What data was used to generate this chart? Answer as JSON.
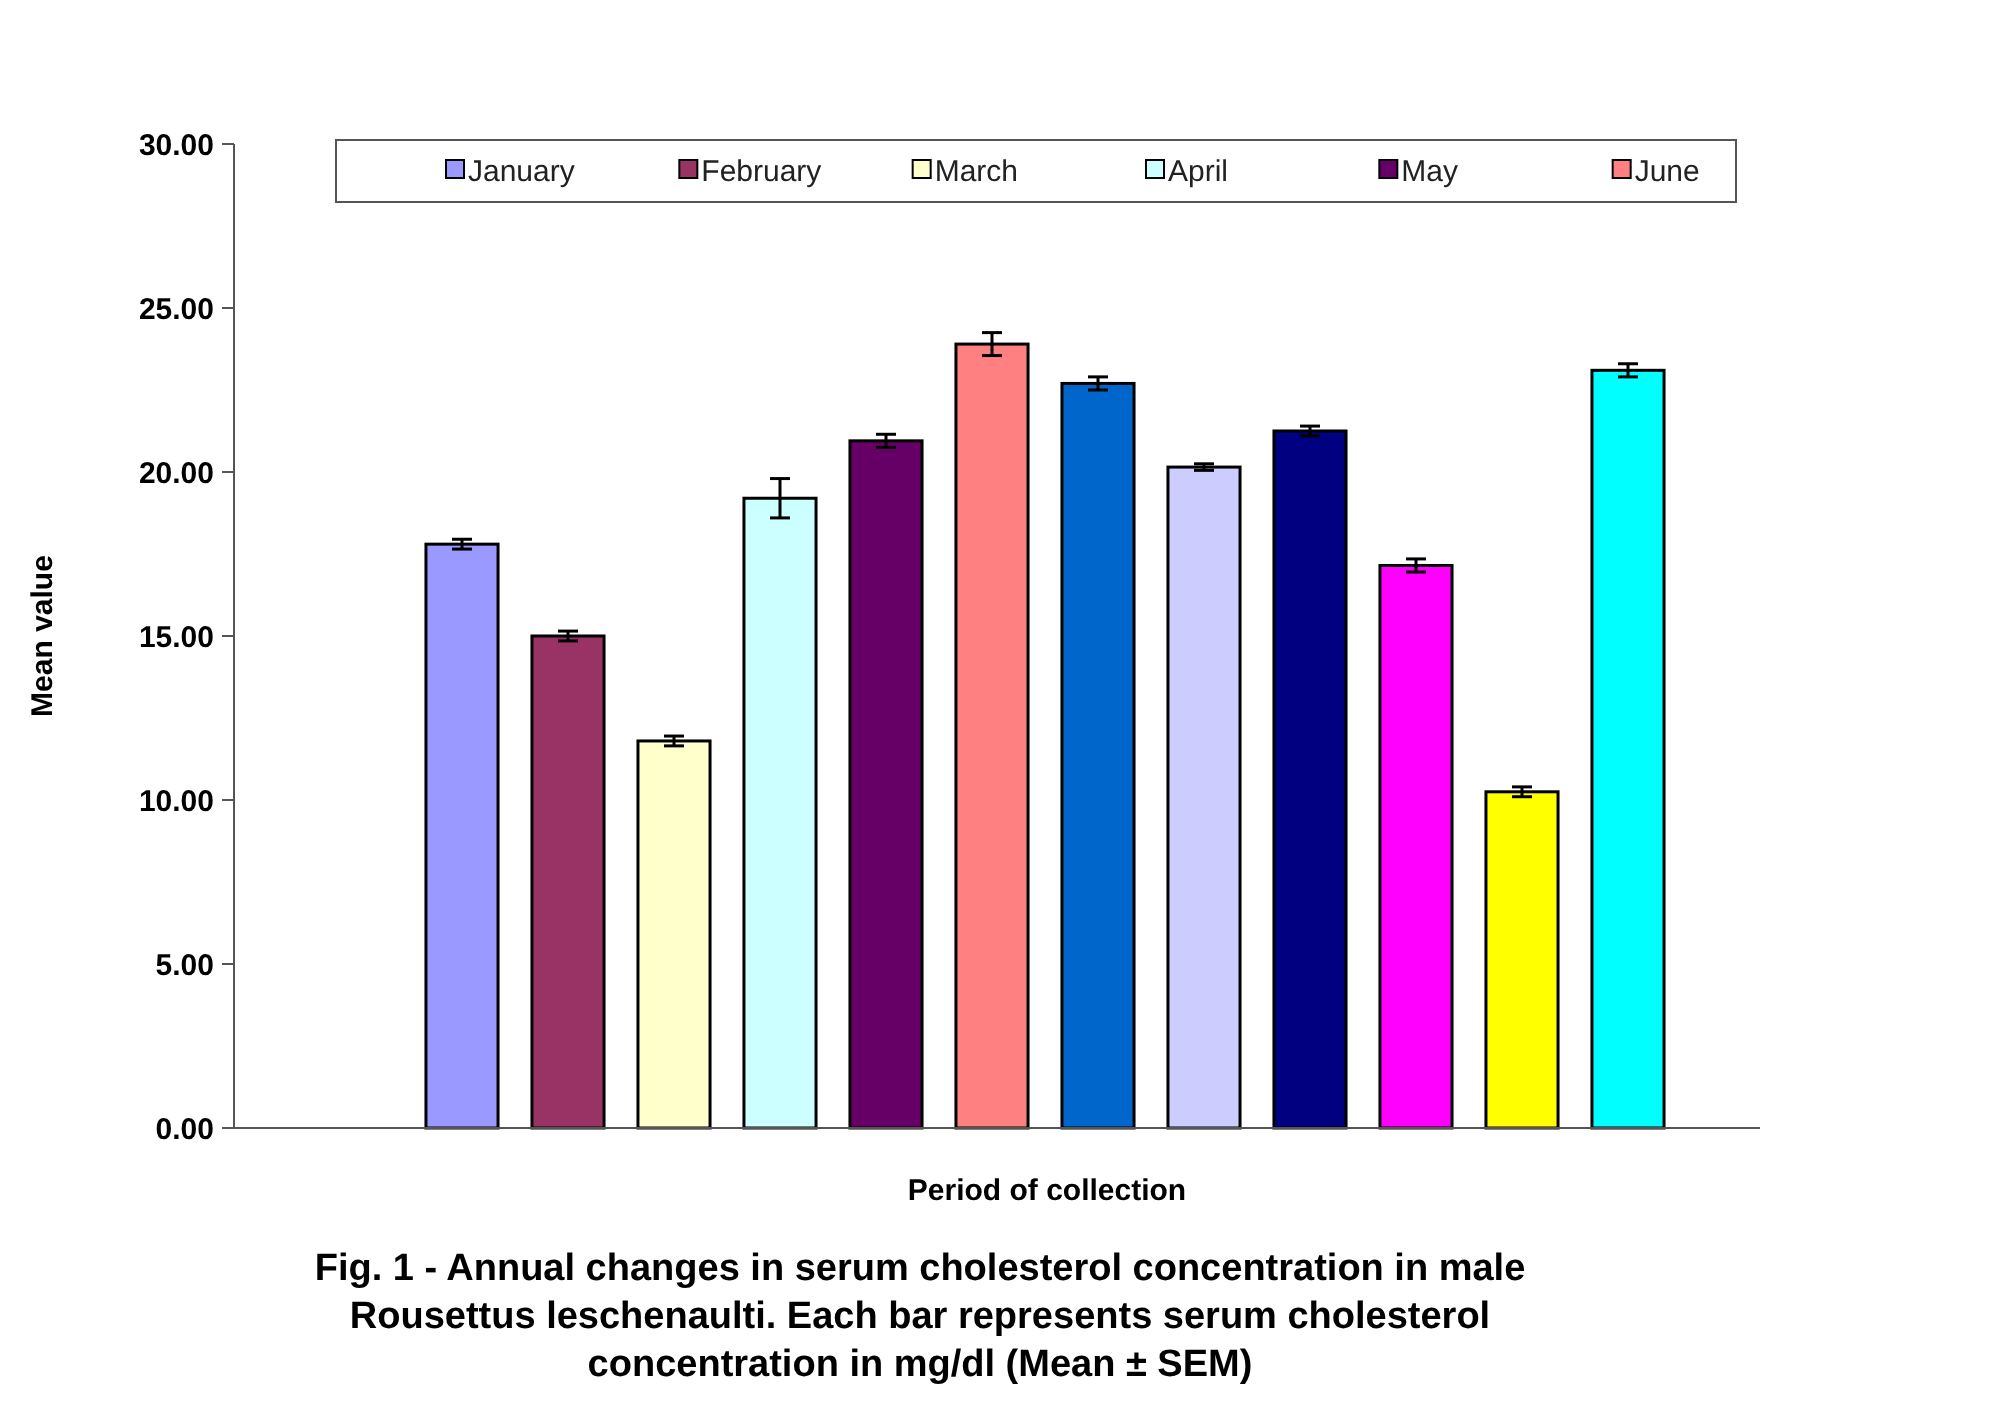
{
  "chart_data": {
    "type": "bar",
    "title": "Fig. 1 - Annual changes in serum cholesterol concentration in male Rousettus leschenaulti. Each bar represents serum cholesterol concentration in mg/dl (Mean ± SEM)",
    "xlabel": "Period of collection",
    "ylabel": "Mean value",
    "categories": [
      null,
      null,
      null,
      null,
      null,
      null,
      null,
      null,
      null,
      null,
      null,
      null
    ],
    "stacked": true,
    "series": [
      {
        "name": "January",
        "color": "#9999ff",
        "values": [
          17.8,
          null,
          null,
          null,
          null,
          null,
          null,
          null,
          null,
          null,
          null,
          null
        ],
        "errors": [
          0.15,
          null,
          null,
          null,
          null,
          null,
          null,
          null,
          null,
          null,
          null,
          null
        ]
      },
      {
        "name": "February",
        "color": "#993366",
        "values": [
          null,
          15.0,
          null,
          null,
          null,
          null,
          null,
          null,
          null,
          null,
          null,
          null
        ],
        "errors": [
          null,
          0.15,
          null,
          null,
          null,
          null,
          null,
          null,
          null,
          null,
          null,
          null
        ]
      },
      {
        "name": "March",
        "color": "#ffffcc",
        "values": [
          null,
          null,
          11.8,
          null,
          null,
          null,
          null,
          null,
          null,
          null,
          null,
          null
        ],
        "errors": [
          null,
          null,
          0.15,
          null,
          null,
          null,
          null,
          null,
          null,
          null,
          null,
          null
        ]
      },
      {
        "name": "April",
        "color": "#ccffff",
        "values": [
          null,
          null,
          null,
          19.2,
          null,
          null,
          null,
          null,
          null,
          null,
          null,
          null
        ],
        "errors": [
          null,
          null,
          null,
          0.6,
          null,
          null,
          null,
          null,
          null,
          null,
          null,
          null
        ]
      },
      {
        "name": "May",
        "color": "#660066",
        "values": [
          null,
          null,
          null,
          null,
          20.95,
          null,
          null,
          null,
          null,
          null,
          null,
          null
        ],
        "errors": [
          null,
          null,
          null,
          null,
          0.2,
          null,
          null,
          null,
          null,
          null,
          null,
          null
        ]
      },
      {
        "name": "June",
        "color": "#ff8080",
        "values": [
          null,
          null,
          null,
          null,
          null,
          23.9,
          null,
          null,
          null,
          null,
          null,
          null
        ],
        "errors": [
          null,
          null,
          null,
          null,
          null,
          0.35,
          null,
          null,
          null,
          null,
          null,
          null
        ]
      },
      {
        "color": "#0066cc",
        "values": [
          null,
          null,
          null,
          null,
          null,
          null,
          22.7,
          null,
          null,
          null,
          null,
          null
        ],
        "errors": [
          null,
          null,
          null,
          null,
          null,
          null,
          0.2,
          null,
          null,
          null,
          null,
          null
        ]
      },
      {
        "color": "#ccccff",
        "values": [
          null,
          null,
          null,
          null,
          null,
          null,
          null,
          20.15,
          null,
          null,
          null,
          null
        ],
        "errors": [
          null,
          null,
          null,
          null,
          null,
          null,
          null,
          0.1,
          null,
          null,
          null,
          null
        ]
      },
      {
        "color": "#000080",
        "values": [
          null,
          null,
          null,
          null,
          null,
          null,
          null,
          null,
          21.25,
          null,
          null,
          null
        ],
        "errors": [
          null,
          null,
          null,
          null,
          null,
          null,
          null,
          null,
          0.15,
          null,
          null,
          null
        ]
      },
      {
        "color": "#ff00ff",
        "values": [
          null,
          null,
          null,
          null,
          null,
          null,
          null,
          null,
          null,
          17.15,
          null,
          null
        ],
        "errors": [
          null,
          null,
          null,
          null,
          null,
          null,
          null,
          null,
          null,
          0.2,
          null,
          null
        ]
      },
      {
        "color": "#ffff00",
        "values": [
          null,
          null,
          null,
          null,
          null,
          null,
          null,
          null,
          null,
          null,
          10.25,
          null
        ],
        "errors": [
          null,
          null,
          null,
          null,
          null,
          null,
          null,
          null,
          null,
          null,
          0.15,
          null
        ]
      },
      {
        "color": "#00ffff",
        "values": [
          null,
          null,
          null,
          null,
          null,
          null,
          null,
          null,
          null,
          null,
          null,
          23.1
        ],
        "errors": [
          null,
          null,
          null,
          null,
          null,
          null,
          null,
          null,
          null,
          null,
          null,
          0.2
        ]
      }
    ],
    "ylim": [
      0,
      30
    ],
    "yticks": [
      {
        "value": 0,
        "label": "0.00"
      },
      {
        "value": 5,
        "label": "5.00"
      },
      {
        "value": 10,
        "label": "10.00"
      },
      {
        "value": 15,
        "label": "15.00"
      },
      {
        "value": 20,
        "label": "20.00"
      },
      {
        "value": 25,
        "label": "25.00"
      },
      {
        "value": 30,
        "label": "30.00"
      }
    ],
    "legend": "top"
  }
}
